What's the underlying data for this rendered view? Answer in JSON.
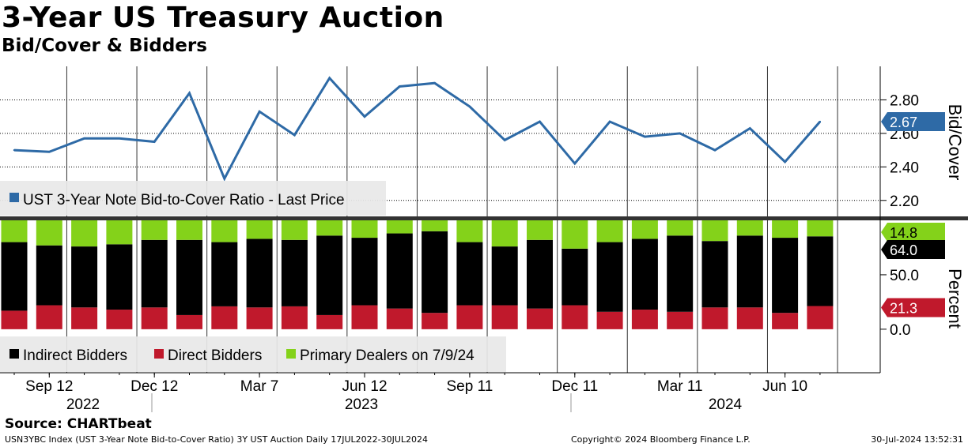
{
  "title": "3-Year US Treasury Auction",
  "subtitle": "Bid/Cover & Bidders",
  "source": "Source: CHARTbeat",
  "footer": {
    "left": "USN3YBC Index (UST 3-Year Note Bid-to-Cover Ratio) 3Y UST Auction  Daily 17JUL2022-30JUL2024",
    "center": "Copyright© 2024 Bloomberg Finance L.P.",
    "right": "30-Jul-2024 13:52:31"
  },
  "colors": {
    "line": "#2e6aa6",
    "indirect": "#000000",
    "direct": "#c0192c",
    "primary": "#84d21a",
    "grid": "#000000"
  },
  "chart_data": [
    {
      "type": "line",
      "name": "top-panel",
      "series": [
        {
          "name": "UST 3-Year Note Bid-to-Cover Ratio - Last Price",
          "values": [
            2.5,
            2.49,
            2.57,
            2.57,
            2.55,
            2.84,
            2.33,
            2.73,
            2.59,
            2.93,
            2.7,
            2.88,
            2.9,
            2.76,
            2.56,
            2.67,
            2.42,
            2.67,
            2.58,
            2.6,
            2.5,
            2.63,
            2.43,
            2.67
          ]
        }
      ],
      "ylim": [
        2.1,
        3.0
      ],
      "yticks": [
        "2.20",
        "2.40",
        "2.60",
        "2.80"
      ],
      "ylabel": "Bid/Cover",
      "last_label": "2.67",
      "legend": "UST 3-Year Note Bid-to-Cover Ratio - Last Price"
    },
    {
      "type": "bar",
      "name": "bottom-panel",
      "stacked": true,
      "series": [
        {
          "name": "Direct Bidders",
          "values": [
            17,
            22,
            20,
            18,
            20,
            13,
            21,
            20,
            21,
            13,
            22,
            19,
            15,
            22,
            22,
            19,
            22,
            16,
            18,
            16,
            20,
            20,
            15,
            21.3
          ]
        },
        {
          "name": "Indirect Bidders",
          "values": [
            63,
            55,
            56,
            60,
            62,
            69,
            59,
            63,
            61,
            73,
            62,
            69,
            75,
            58,
            54,
            63,
            52,
            64,
            65,
            70,
            61,
            66,
            69,
            64.0
          ]
        },
        {
          "name": "Primary Dealers on 7/9/24",
          "values": [
            20,
            23,
            24,
            22,
            18,
            18,
            20,
            17,
            18,
            14,
            16,
            12,
            10,
            20,
            24,
            18,
            26,
            20,
            17,
            14,
            19,
            14,
            16,
            14.8
          ]
        }
      ],
      "ylim": [
        -40,
        100
      ],
      "yticks": [
        "0.0",
        "50.0"
      ],
      "ylabel": "Percent",
      "last_labels": {
        "primary": "14.8",
        "indirect": "64.0",
        "direct": "21.3"
      },
      "legend": [
        "Indirect Bidders",
        "Direct Bidders",
        "Primary Dealers on 7/9/24"
      ]
    }
  ],
  "x_axis": {
    "month_labels": [
      "Sep 12",
      "Dec 12",
      "Mar 7",
      "Jun 12",
      "Sep 11",
      "Dec 11",
      "Mar 11",
      "Jun 10"
    ],
    "year_labels": [
      "2022",
      "2023",
      "2024"
    ]
  }
}
